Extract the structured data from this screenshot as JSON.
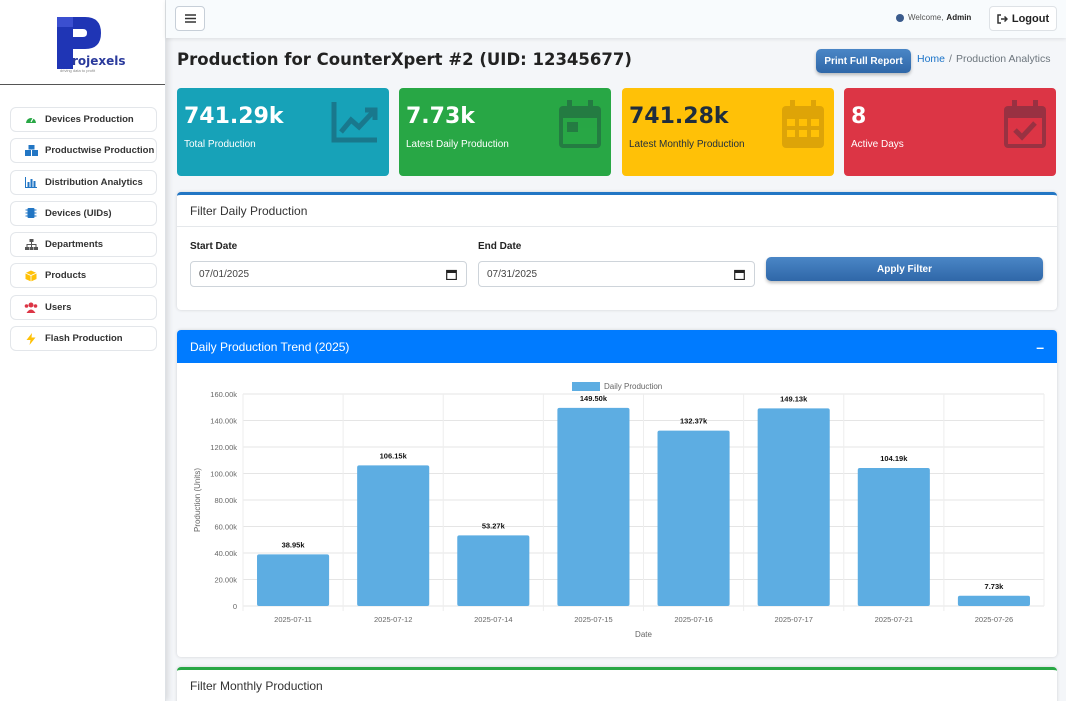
{
  "sidebar": {
    "logo_text": "rojexels",
    "logo_tagline": "driving data to profit",
    "items": [
      {
        "label": "Devices Production",
        "icon": "gauge-icon",
        "color": "#28a745"
      },
      {
        "label": "Productwise Production",
        "icon": "boxes-icon",
        "color": "#2276c4"
      },
      {
        "label": "Distribution Analytics",
        "icon": "chart-bar-icon",
        "color": "#2276c4"
      },
      {
        "label": "Devices (UIDs)",
        "icon": "microchip-icon",
        "color": "#2276c4"
      },
      {
        "label": "Departments",
        "icon": "sitemap-icon",
        "color": "#555555"
      },
      {
        "label": "Products",
        "icon": "cube-icon",
        "color": "#ffc107"
      },
      {
        "label": "Users",
        "icon": "users-icon",
        "color": "#dc3545"
      },
      {
        "label": "Flash Production",
        "icon": "bolt-icon",
        "color": "#ffc107"
      }
    ]
  },
  "topbar": {
    "welcome_prefix": "Welcome,",
    "user": "Admin",
    "logout_label": "Logout"
  },
  "header": {
    "title": "Production for CounterXpert #2 (UID: 12345677)",
    "print_label": "Print Full Report",
    "breadcrumb_home": "Home",
    "breadcrumb_sep": "/",
    "breadcrumb_current": "Production Analytics"
  },
  "stats": [
    {
      "value": "741.29k",
      "label": "Total Production",
      "icon": "chart-line-icon",
      "color": "#17a2b8"
    },
    {
      "value": "7.73k",
      "label": "Latest Daily Production",
      "icon": "calendar-day-icon",
      "color": "#28a745"
    },
    {
      "value": "741.28k",
      "label": "Latest Monthly Production",
      "icon": "calendar-grid-icon",
      "color": "#ffc107"
    },
    {
      "value": "8",
      "label": "Active Days",
      "icon": "calendar-check-icon",
      "color": "#dc3545"
    }
  ],
  "filter_daily": {
    "title": "Filter Daily Production",
    "start_label": "Start Date",
    "start_value": "07/01/2025",
    "end_label": "End Date",
    "end_value": "07/31/2025",
    "apply_label": "Apply Filter"
  },
  "trend": {
    "title": "Daily Production Trend (2025)",
    "collapse_symbol": "–"
  },
  "chart_data": {
    "type": "bar",
    "title": "",
    "legend": "Daily Production",
    "legend_position": "top-center",
    "xlabel": "Date",
    "ylabel": "Production (Units)",
    "categories": [
      "2025-07-11",
      "2025-07-12",
      "2025-07-14",
      "2025-07-15",
      "2025-07-16",
      "2025-07-17",
      "2025-07-21",
      "2025-07-26"
    ],
    "values": [
      38950,
      106150,
      53270,
      149500,
      132370,
      149130,
      104190,
      7730
    ],
    "data_labels": [
      "38.95k",
      "106.15k",
      "53.27k",
      "149.50k",
      "132.37k",
      "149.13k",
      "104.19k",
      "7.73k"
    ],
    "ylim": [
      0,
      160000
    ],
    "yticks": [
      0,
      20000,
      40000,
      60000,
      80000,
      100000,
      120000,
      140000,
      160000
    ],
    "ytick_labels": [
      "0",
      "20.00k",
      "40.00k",
      "60.00k",
      "80.00k",
      "100.00k",
      "120.00k",
      "140.00k",
      "160.00k"
    ],
    "grid": true,
    "bar_color": "#5dade2"
  },
  "filter_monthly": {
    "title": "Filter Monthly Production"
  }
}
